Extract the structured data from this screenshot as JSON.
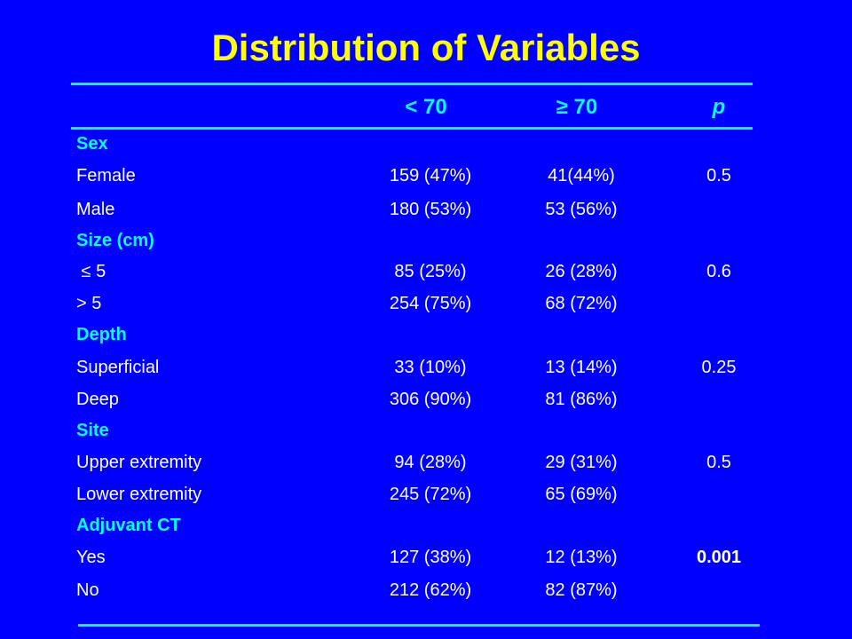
{
  "title": "Distribution of Variables",
  "columns": [
    "< 70",
    "≥ 70",
    "p"
  ],
  "rows": [
    {
      "type": "section",
      "label": "Sex"
    },
    {
      "type": "data",
      "label": "Female",
      "v1": "159 (47%)",
      "v2": "41(44%)",
      "p": "0.5"
    },
    {
      "type": "data",
      "label": "Male",
      "v1": "180 (53%)",
      "v2": "53 (56%)",
      "p": ""
    },
    {
      "type": "section",
      "label": "Size (cm)"
    },
    {
      "type": "data",
      "label": " ≤ 5",
      "v1": "85 (25%)",
      "v2": "26 (28%)",
      "p": "0.6"
    },
    {
      "type": "data",
      "label": "> 5",
      "v1": "254 (75%)",
      "v2": "68 (72%)",
      "p": ""
    },
    {
      "type": "section",
      "label": "Depth"
    },
    {
      "type": "data",
      "label": "Superficial",
      "v1": "33 (10%)",
      "v2": "13 (14%)",
      "p": "0.25"
    },
    {
      "type": "data",
      "label": "Deep",
      "v1": "306 (90%)",
      "v2": "81 (86%)",
      "p": ""
    },
    {
      "type": "section",
      "label": "Site"
    },
    {
      "type": "data",
      "label": "Upper extremity",
      "v1": "94 (28%)",
      "v2": "29 (31%)",
      "p": "0.5"
    },
    {
      "type": "data",
      "label": "Lower extremity",
      "v1": "245 (72%)",
      "v2": "65 (69%)",
      "p": ""
    },
    {
      "type": "section",
      "label": "Adjuvant CT"
    },
    {
      "type": "data",
      "label": "Yes",
      "v1": "127 (38%)",
      "v2": "12 (13%)",
      "p": "0.001",
      "p_bold": true
    },
    {
      "type": "data",
      "label": "No",
      "v1": "212 (62%)",
      "v2": "82 (87%)",
      "p": ""
    }
  ],
  "colors": {
    "background": "#0000ff",
    "title": "#ffff00",
    "accent": "#00ffff",
    "text": "#ffffff"
  }
}
